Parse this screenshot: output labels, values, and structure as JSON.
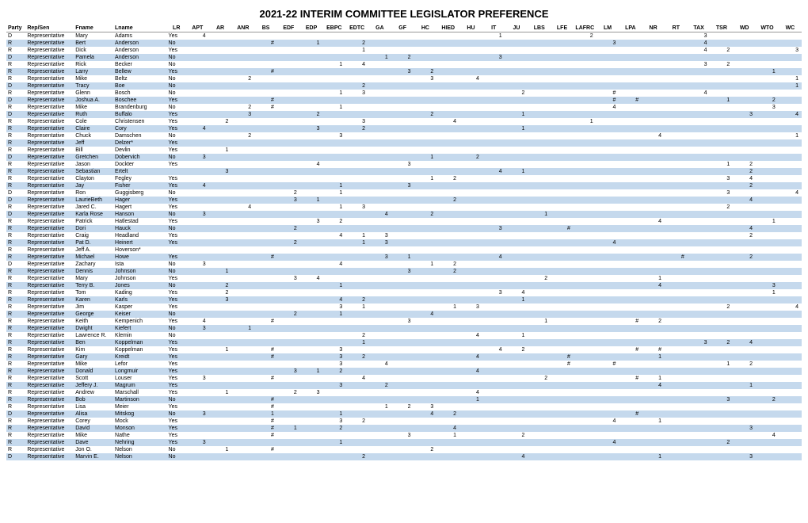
{
  "title": "2021-22 INTERIM COMMITTEE LEGISLATOR PREFERENCE",
  "columns": [
    "Party",
    "Rep/Sen",
    "Fname",
    "Lname",
    "",
    "LR",
    "APT",
    "AR",
    "ANR",
    "BS",
    "EDF",
    "EDP",
    "EBPC",
    "EDTC",
    "GA",
    "GF",
    "HC",
    "HIED",
    "HU",
    "IT",
    "JU",
    "LBS",
    "LFE",
    "LAFRC",
    "LM",
    "LPA",
    "NR",
    "RT",
    "TAX",
    "TSR",
    "WD",
    "WTO",
    "WC"
  ],
  "colors": {
    "odd": "#c5d9ed",
    "even": "#ffffff"
  },
  "rows": [
    {
      "p": "D",
      "rs": "Representative",
      "f": "Mary",
      "l": "Adams",
      "lr": "Yes",
      "v": {
        "APT": 4,
        "IT": 1,
        "LAFRC": 2,
        "TAX": 3
      }
    },
    {
      "p": "R",
      "rs": "Representative",
      "f": "Bert",
      "l": "Anderson",
      "lr": "No",
      "v": {
        "BS": "#",
        "EDP": 1,
        "EDTC": 2,
        "LM": 3,
        "TAX": 4
      }
    },
    {
      "p": "R",
      "rs": "Representative",
      "f": "Dick",
      "l": "Anderson",
      "lr": "Yes",
      "v": {
        "EDTC": 1,
        "TAX": 4,
        "TSR": 2,
        "WC": 3
      }
    },
    {
      "p": "D",
      "rs": "Representative",
      "f": "Pamela",
      "l": "Anderson",
      "lr": "No",
      "v": {
        "GA": 1,
        "GF": 2,
        "IT": 3
      }
    },
    {
      "p": "R",
      "rs": "Representative",
      "f": "Rick",
      "l": "Becker",
      "lr": "No",
      "v": {
        "EBPC": 1,
        "EDTC": 4,
        "TAX": 3,
        "TSR": 2
      }
    },
    {
      "p": "R",
      "rs": "Representative",
      "f": "Larry",
      "l": "Bellew",
      "lr": "Yes",
      "v": {
        "BS": "#",
        "GF": 3,
        "HC": 2,
        "WTO": 1
      }
    },
    {
      "p": "R",
      "rs": "Representative",
      "f": "Mike",
      "l": "Beltz",
      "lr": "No",
      "v": {
        "ANR": 2,
        "HC": 3,
        "HU": 4,
        "WC": 1
      }
    },
    {
      "p": "D",
      "rs": "Representative",
      "f": "Tracy",
      "l": "Boe",
      "lr": "No",
      "v": {
        "EDTC": 2,
        "WC": 1
      }
    },
    {
      "p": "R",
      "rs": "Representative",
      "f": "Glenn",
      "l": "Bosch",
      "lr": "No",
      "v": {
        "EBPC": 1,
        "EDTC": 3,
        "JU": 2,
        "LM": "#",
        "TAX": 4
      }
    },
    {
      "p": "D",
      "rs": "Representative",
      "f": "Joshua A.",
      "l": "Boschee",
      "lr": "Yes",
      "v": {
        "BS": "#",
        "LM": "#",
        "LPA": "#",
        "TSR": 1,
        "WTO": 2
      }
    },
    {
      "p": "R",
      "rs": "Representative",
      "f": "Mike",
      "l": "Brandenburg",
      "lr": "No",
      "v": {
        "ANR": 2,
        "BS": "#",
        "EBPC": 1,
        "LM": 4,
        "WTO": 3
      }
    },
    {
      "p": "D",
      "rs": "Representative",
      "f": "Ruth",
      "l": "Buffalo",
      "lr": "Yes",
      "v": {
        "ANR": 3,
        "EDP": 2,
        "HC": 2,
        "JU": 1,
        "WD": 3,
        "WC": 4
      }
    },
    {
      "p": "R",
      "rs": "Representative",
      "f": "Cole",
      "l": "Christensen",
      "lr": "Yes",
      "v": {
        "AR": 2,
        "EDTC": 3,
        "HIED": 4,
        "LAFRC": 1
      }
    },
    {
      "p": "R",
      "rs": "Representative",
      "f": "Claire",
      "l": "Cory",
      "lr": "Yes",
      "v": {
        "APT": 4,
        "EDP": 3,
        "EDTC": 2,
        "JU": 1
      }
    },
    {
      "p": "R",
      "rs": "Representative",
      "f": "Chuck",
      "l": "Damschen",
      "lr": "No",
      "v": {
        "ANR": 2,
        "EBPC": 3,
        "NR": 4,
        "WC": 1
      }
    },
    {
      "p": "R",
      "rs": "Representative",
      "f": "Jeff",
      "l": "Delzer*",
      "lr": "Yes",
      "v": {}
    },
    {
      "p": "R",
      "rs": "Representative",
      "f": "Bill",
      "l": "Devlin",
      "lr": "Yes",
      "v": {
        "AR": 1
      }
    },
    {
      "p": "D",
      "rs": "Representative",
      "f": "Gretchen",
      "l": "Dobervich",
      "lr": "No",
      "v": {
        "APT": 3,
        "HC": 1,
        "HU": 2
      }
    },
    {
      "p": "R",
      "rs": "Representative",
      "f": "Jason",
      "l": "Dockter",
      "lr": "Yes",
      "v": {
        "EDP": 4,
        "GF": 3,
        "TSR": 1,
        "WD": 2
      }
    },
    {
      "p": "R",
      "rs": "Representative",
      "f": "Sebastian",
      "l": "Ertelt",
      "lr": "",
      "v": {
        "AR": 3,
        "IT": 4,
        "JU": 1,
        "WD": 2
      }
    },
    {
      "p": "R",
      "rs": "Representative",
      "f": "Clayton",
      "l": "Fegley",
      "lr": "Yes",
      "v": {
        "HC": 1,
        "HIED": 2,
        "TSR": 3,
        "WD": 4
      }
    },
    {
      "p": "R",
      "rs": "Representative",
      "f": "Jay",
      "l": "Fisher",
      "lr": "Yes",
      "v": {
        "APT": 4,
        "EBPC": 1,
        "GF": 3,
        "WD": 2
      }
    },
    {
      "p": "D",
      "rs": "Representative",
      "f": "Ron",
      "l": "Guggisberg",
      "lr": "No",
      "v": {
        "EDF": 2,
        "EBPC": 1,
        "TSR": 3,
        "WC": 4
      }
    },
    {
      "p": "D",
      "rs": "Representative",
      "f": "LaurieBeth",
      "l": "Hager",
      "lr": "Yes",
      "v": {
        "EDF": 3,
        "EDP": 1,
        "HIED": 2,
        "WD": 4
      }
    },
    {
      "p": "R",
      "rs": "Representative",
      "f": "Jared C.",
      "l": "Hagert",
      "lr": "Yes",
      "v": {
        "ANR": 4,
        "EBPC": 1,
        "EDTC": 3,
        "TSR": 2
      }
    },
    {
      "p": "D",
      "rs": "Representative",
      "f": "Karla Rose",
      "l": "Hanson",
      "lr": "No",
      "v": {
        "APT": 3,
        "GA": 4,
        "HC": 2,
        "LBS": 1
      }
    },
    {
      "p": "R",
      "rs": "Representative",
      "f": "Patrick",
      "l": "Hatlestad",
      "lr": "Yes",
      "v": {
        "EDP": 3,
        "EBPC": 2,
        "NR": 4,
        "WTO": 1
      }
    },
    {
      "p": "R",
      "rs": "Representative",
      "f": "Dori",
      "l": "Hauck",
      "lr": "No",
      "v": {
        "EDF": 2,
        "IT": 3,
        "LFE": "#",
        "WD": 4
      }
    },
    {
      "p": "R",
      "rs": "Representative",
      "f": "Craig",
      "l": "Headland",
      "lr": "Yes",
      "v": {
        "EBPC": 4,
        "EDTC": 1,
        "GA": 3,
        "WD": 2
      }
    },
    {
      "p": "R",
      "rs": "Representative",
      "f": "Pat D.",
      "l": "Heinert",
      "lr": "Yes",
      "v": {
        "EDF": 2,
        "EDTC": 1,
        "GA": 3,
        "LM": 4
      }
    },
    {
      "p": "R",
      "rs": "Representative",
      "f": "Jeff A.",
      "l": "Hoverson*",
      "lr": "",
      "v": {}
    },
    {
      "p": "R",
      "rs": "Representative",
      "f": "Michael",
      "l": "Howe",
      "lr": "Yes",
      "v": {
        "BS": "#",
        "GA": 3,
        "GF": 1,
        "IT": 4,
        "RT": "#",
        "WD": 2
      }
    },
    {
      "p": "D",
      "rs": "Representative",
      "f": "Zachary",
      "l": "Ista",
      "lr": "No",
      "v": {
        "APT": 3,
        "EBPC": 4,
        "HC": 1,
        "HIED": 2
      }
    },
    {
      "p": "R",
      "rs": "Representative",
      "f": "Dennis",
      "l": "Johnson",
      "lr": "No",
      "v": {
        "AR": 1,
        "GF": 3,
        "HIED": 2
      }
    },
    {
      "p": "R",
      "rs": "Representative",
      "f": "Mary",
      "l": "Johnson",
      "lr": "Yes",
      "v": {
        "EDF": 3,
        "EDP": 4,
        "LBS": 2,
        "NR": 1
      }
    },
    {
      "p": "R",
      "rs": "Representative",
      "f": "Terry B.",
      "l": "Jones",
      "lr": "No",
      "v": {
        "AR": 2,
        "EBPC": 1,
        "NR": 4,
        "WTO": 3
      }
    },
    {
      "p": "R",
      "rs": "Representative",
      "f": "Tom",
      "l": "Kading",
      "lr": "Yes",
      "v": {
        "AR": 2,
        "IT": 3,
        "JU": 4,
        "WTO": 1
      }
    },
    {
      "p": "R",
      "rs": "Representative",
      "f": "Karen",
      "l": "Karls",
      "lr": "Yes",
      "v": {
        "AR": 3,
        "EBPC": 4,
        "EDTC": 2,
        "JU": 1
      }
    },
    {
      "p": "R",
      "rs": "Representative",
      "f": "Jim",
      "l": "Kasper",
      "lr": "Yes",
      "v": {
        "EBPC": 3,
        "EDTC": 1,
        "HIED": 1,
        "HU": 3,
        "TSR": 2,
        "WC": 4
      }
    },
    {
      "p": "R",
      "rs": "Representative",
      "f": "George",
      "l": "Keiser",
      "lr": "No",
      "v": {
        "EDF": 2,
        "EBPC": 1,
        "HC": 4
      }
    },
    {
      "p": "R",
      "rs": "Representative",
      "f": "Keith",
      "l": "Kempenich",
      "lr": "Yes",
      "v": {
        "APT": 4,
        "BS": "#",
        "GF": 3,
        "LBS": 1,
        "LPA": "#",
        "NR": 2
      }
    },
    {
      "p": "R",
      "rs": "Representative",
      "f": "Dwight",
      "l": "Kiefert",
      "lr": "No",
      "v": {
        "APT": 3,
        "ANR": 1
      }
    },
    {
      "p": "R",
      "rs": "Representative",
      "f": "Lawrence R.",
      "l": "Klemin",
      "lr": "No",
      "v": {
        "EDTC": 2,
        "HU": 4,
        "JU": 1
      }
    },
    {
      "p": "R",
      "rs": "Representative",
      "f": "Ben",
      "l": "Koppelman",
      "lr": "Yes",
      "v": {
        "EDTC": 1,
        "TAX": 3,
        "TSR": 2,
        "WD": 4
      }
    },
    {
      "p": "R",
      "rs": "Representative",
      "f": "Kim",
      "l": "Koppelman",
      "lr": "Yes",
      "v": {
        "AR": 1,
        "BS": "#",
        "EBPC": 3,
        "IT": 4,
        "JU": 2,
        "LPA": "#",
        "NR": "#"
      }
    },
    {
      "p": "R",
      "rs": "Representative",
      "f": "Gary",
      "l": "Kreidt",
      "lr": "Yes",
      "v": {
        "BS": "#",
        "EBPC": 3,
        "EDTC": 2,
        "HU": 4,
        "LFE": "#",
        "NR": 1
      }
    },
    {
      "p": "R",
      "rs": "Representative",
      "f": "Mike",
      "l": "Lefor",
      "lr": "Yes",
      "v": {
        "EBPC": 3,
        "GA": 4,
        "LFE": "#",
        "LM": "#",
        "TSR": 1,
        "WD": 2
      }
    },
    {
      "p": "R",
      "rs": "Representative",
      "f": "Donald",
      "l": "Longmuir",
      "lr": "Yes",
      "v": {
        "EDF": 3,
        "EDP": 1,
        "EBPC": 2,
        "HU": 4
      }
    },
    {
      "p": "R",
      "rs": "Representative",
      "f": "Scott",
      "l": "Louser",
      "lr": "Yes",
      "v": {
        "APT": 3,
        "BS": "#",
        "EDTC": 4,
        "LBS": 2,
        "LPA": "#",
        "NR": 1
      }
    },
    {
      "p": "R",
      "rs": "Representative",
      "f": "Jeffery J.",
      "l": "Magrum",
      "lr": "Yes",
      "v": {
        "EBPC": 3,
        "GA": 2,
        "NR": 4,
        "WD": 1
      }
    },
    {
      "p": "R",
      "rs": "Representative",
      "f": "Andrew",
      "l": "Marschall",
      "lr": "Yes",
      "v": {
        "AR": 1,
        "EDF": 2,
        "EDP": 3,
        "HU": 4
      }
    },
    {
      "p": "R",
      "rs": "Representative",
      "f": "Bob",
      "l": "Martinson",
      "lr": "No",
      "v": {
        "BS": "#",
        "HU": 1,
        "TSR": 3,
        "WTO": 2
      }
    },
    {
      "p": "R",
      "rs": "Representative",
      "f": "Lisa",
      "l": "Meier",
      "lr": "Yes",
      "v": {
        "BS": "#",
        "GA": 1,
        "GF": 2,
        "HC": 3
      }
    },
    {
      "p": "D",
      "rs": "Representative",
      "f": "Alisa",
      "l": "Mitskog",
      "lr": "No",
      "v": {
        "APT": 3,
        "BS": 1,
        "EBPC": 1,
        "HC": 4,
        "HIED": 2,
        "LPA": "#"
      }
    },
    {
      "p": "R",
      "rs": "Representative",
      "f": "Corey",
      "l": "Mock",
      "lr": "Yes",
      "v": {
        "BS": "#",
        "EBPC": 3,
        "EDTC": 2,
        "LM": 4,
        "NR": 1
      }
    },
    {
      "p": "R",
      "rs": "Representative",
      "f": "David",
      "l": "Monson",
      "lr": "Yes",
      "v": {
        "BS": "#",
        "EDF": 1,
        "EBPC": 2,
        "HIED": 4,
        "WD": 3
      }
    },
    {
      "p": "R",
      "rs": "Representative",
      "f": "Mike",
      "l": "Nathe",
      "lr": "Yes",
      "v": {
        "BS": "#",
        "GF": 3,
        "HIED": 1,
        "JU": 2,
        "WTO": 4
      }
    },
    {
      "p": "R",
      "rs": "Representative",
      "f": "Dave",
      "l": "Nehring",
      "lr": "Yes",
      "v": {
        "APT": 3,
        "EBPC": 1,
        "LM": 4,
        "TSR": 2
      }
    },
    {
      "p": "R",
      "rs": "Representative",
      "f": "Jon O.",
      "l": "Nelson",
      "lr": "No",
      "v": {
        "AR": 1,
        "BS": "#",
        "HC": 2
      }
    },
    {
      "p": "D",
      "rs": "Representative",
      "f": "Marvin E.",
      "l": "Nelson",
      "lr": "No",
      "v": {
        "EDTC": 2,
        "JU": 4,
        "NR": 1,
        "WD": 3
      }
    }
  ]
}
